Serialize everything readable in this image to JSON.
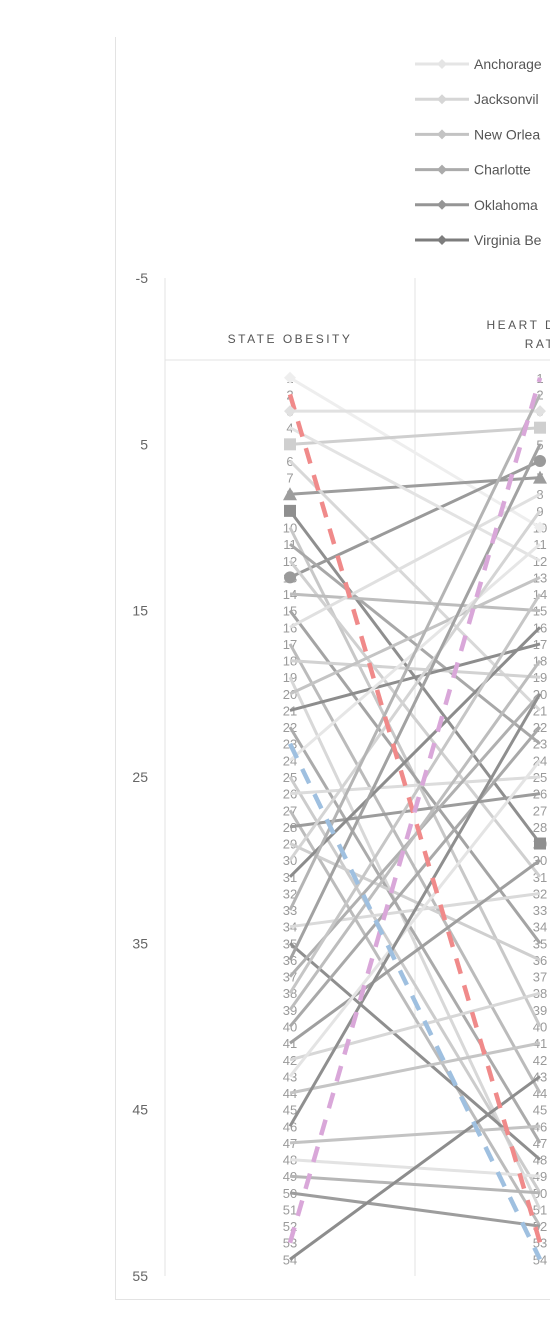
{
  "chart_data": {
    "type": "line",
    "ylim": [
      -5,
      55
    ],
    "y_ticks": [
      "-5",
      "5",
      "15",
      "25",
      "35",
      "45",
      "55"
    ],
    "y_reversed": true,
    "categories": [
      "STATE OBESITY",
      "HEART DISEASE RATE"
    ],
    "category_lines": [
      [
        "STATE OBESITY"
      ],
      [
        "HEART DISEA",
        "RAT"
      ]
    ],
    "rank_labels": [
      "1",
      "2",
      "3",
      "4",
      "5",
      "6",
      "7",
      "8",
      "9",
      "10",
      "11",
      "12",
      "13",
      "14",
      "15",
      "16",
      "17",
      "18",
      "19",
      "20",
      "21",
      "22",
      "23",
      "24",
      "25",
      "26",
      "27",
      "28",
      "29",
      "30",
      "31",
      "32",
      "33",
      "34",
      "35",
      "36",
      "37",
      "38",
      "39",
      "40",
      "41",
      "42",
      "43",
      "44",
      "45",
      "46",
      "47",
      "48",
      "49",
      "50",
      "51",
      "52",
      "53",
      "54"
    ],
    "legend": [
      "Anchorage",
      "Jacksonvil",
      "New Orlea",
      "Charlotte",
      "Oklahoma",
      "Virginia Be"
    ],
    "series": [
      {
        "name": "Anchorage",
        "values": [
          1,
          10
        ],
        "color": "#eeeeee",
        "dash": false
      },
      {
        "name": "Jacksonvil",
        "values": [
          3,
          3
        ],
        "color": "#e1e1e1",
        "dash": false
      },
      {
        "name": "New Orlea",
        "values": [
          5,
          4
        ],
        "color": "#cfcfcf",
        "dash": false
      },
      {
        "name": "Charlotte",
        "values": [
          8,
          7
        ],
        "color": "#9d9d9d",
        "dash": false
      },
      {
        "name": "Oklahoma",
        "values": [
          9,
          29
        ],
        "color": "#8f8f8f",
        "dash": false
      },
      {
        "name": "Virginia Be",
        "values": [
          13,
          6
        ],
        "color": "#9a9a9a",
        "dash": false
      },
      {
        "values": [
          2,
          53
        ],
        "color": "#f08a8a",
        "dash": true
      },
      {
        "values": [
          53,
          1
        ],
        "color": "#d9a7d9",
        "dash": true
      },
      {
        "values": [
          23,
          54
        ],
        "color": "#9fc0e0",
        "dash": true
      },
      {
        "values": [
          4,
          12
        ],
        "color": "#e3e3e3",
        "dash": false
      },
      {
        "values": [
          6,
          21
        ],
        "color": "#d8d8d8",
        "dash": false
      },
      {
        "values": [
          10,
          40
        ],
        "color": "#c8c8c8",
        "dash": false
      },
      {
        "values": [
          11,
          23
        ],
        "color": "#a8a8a8",
        "dash": false
      },
      {
        "values": [
          12,
          31
        ],
        "color": "#d0d0d0",
        "dash": false
      },
      {
        "values": [
          14,
          15
        ],
        "color": "#bdbdbd",
        "dash": false
      },
      {
        "values": [
          15,
          35
        ],
        "color": "#a4a4a4",
        "dash": false
      },
      {
        "values": [
          16,
          8
        ],
        "color": "#e0e0e0",
        "dash": false
      },
      {
        "values": [
          17,
          44
        ],
        "color": "#bbbbbb",
        "dash": false
      },
      {
        "values": [
          18,
          19
        ],
        "color": "#d2d2d2",
        "dash": false
      },
      {
        "values": [
          19,
          51
        ],
        "color": "#d8d8d8",
        "dash": false
      },
      {
        "values": [
          20,
          13
        ],
        "color": "#c4c4c4",
        "dash": false
      },
      {
        "values": [
          21,
          17
        ],
        "color": "#8d8d8d",
        "dash": false
      },
      {
        "values": [
          22,
          47
        ],
        "color": "#ababab",
        "dash": false
      },
      {
        "values": [
          24,
          11
        ],
        "color": "#e6e6e6",
        "dash": false
      },
      {
        "values": [
          25,
          50
        ],
        "color": "#cccccc",
        "dash": false
      },
      {
        "values": [
          26,
          25
        ],
        "color": "#dcdcdc",
        "dash": false
      },
      {
        "values": [
          27,
          52
        ],
        "color": "#bcbcbc",
        "dash": false
      },
      {
        "values": [
          28,
          26
        ],
        "color": "#9c9c9c",
        "dash": false
      },
      {
        "values": [
          29,
          36
        ],
        "color": "#cfcfcf",
        "dash": false
      },
      {
        "values": [
          30,
          9
        ],
        "color": "#d4d4d4",
        "dash": false
      },
      {
        "values": [
          31,
          16
        ],
        "color": "#8c8c8c",
        "dash": false
      },
      {
        "values": [
          33,
          2
        ],
        "color": "#b4b4b4",
        "dash": false
      },
      {
        "values": [
          34,
          32
        ],
        "color": "#dadada",
        "dash": false
      },
      {
        "values": [
          35,
          48
        ],
        "color": "#8f8f8f",
        "dash": false
      },
      {
        "values": [
          36,
          5
        ],
        "color": "#a2a2a2",
        "dash": false
      },
      {
        "values": [
          37,
          20
        ],
        "color": "#b0b0b0",
        "dash": false
      },
      {
        "values": [
          38,
          14
        ],
        "color": "#c6c6c6",
        "dash": false
      },
      {
        "values": [
          39,
          18
        ],
        "color": "#bdbdbd",
        "dash": false
      },
      {
        "values": [
          40,
          22
        ],
        "color": "#a9a9a9",
        "dash": false
      },
      {
        "values": [
          41,
          30
        ],
        "color": "#9f9f9f",
        "dash": false
      },
      {
        "values": [
          42,
          38
        ],
        "color": "#d7d7d7",
        "dash": false
      },
      {
        "values": [
          43,
          24
        ],
        "color": "#e4e4e4",
        "dash": false
      },
      {
        "values": [
          44,
          41
        ],
        "color": "#c5c5c5",
        "dash": false
      },
      {
        "values": [
          46,
          20
        ],
        "color": "#8f8f8f",
        "dash": false
      },
      {
        "values": [
          47,
          46
        ],
        "color": "#c3c3c3",
        "dash": false
      },
      {
        "values": [
          48,
          49
        ],
        "color": "#e3e3e3",
        "dash": false
      },
      {
        "values": [
          49,
          50
        ],
        "color": "#b6b6b6",
        "dash": false
      },
      {
        "values": [
          50,
          52
        ],
        "color": "#9d9d9d",
        "dash": false
      },
      {
        "values": [
          54,
          43
        ],
        "color": "#8d8d8d",
        "dash": false
      }
    ]
  }
}
